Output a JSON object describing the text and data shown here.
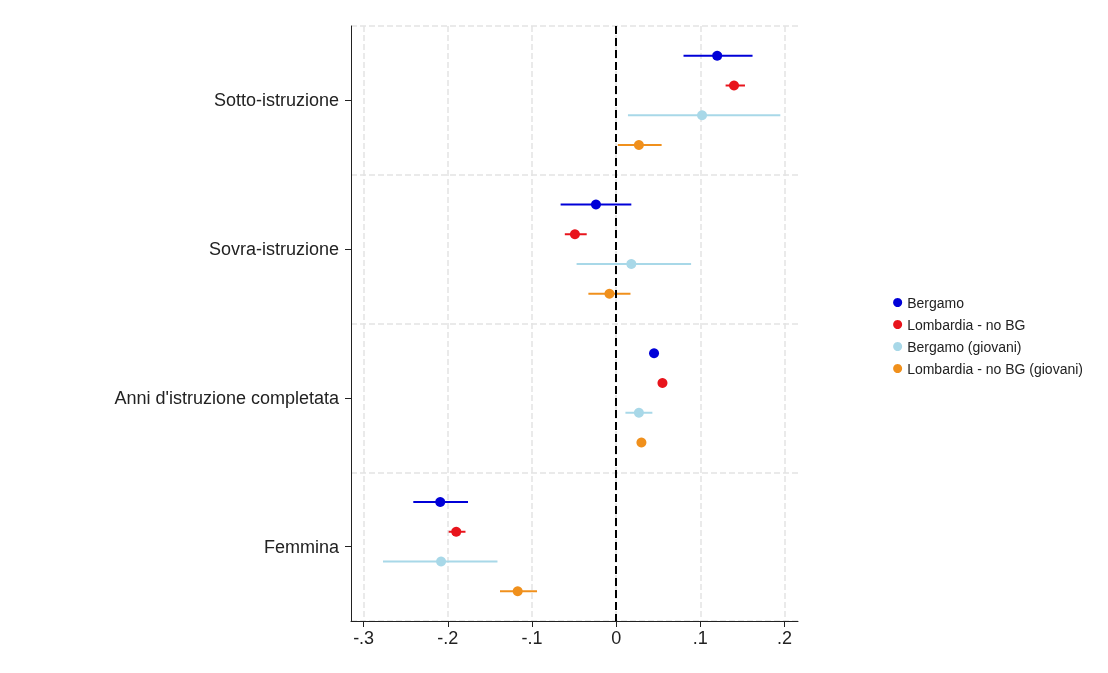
{
  "chart_data": {
    "type": "scatter",
    "orientation": "horizontal",
    "categories": [
      "Sotto-istruzione",
      "Sovra-istruzione",
      "Anni d'istruzione completata",
      "Femmina"
    ],
    "series": [
      {
        "name": "Bergamo",
        "color": "#0000d8",
        "values": [
          0.12,
          -0.024,
          0.045,
          -0.209
        ],
        "errors": [
          [
            0.08,
            0.162
          ],
          [
            -0.066,
            0.018
          ],
          null,
          [
            -0.241,
            -0.176
          ]
        ]
      },
      {
        "name": "Lombardia - no BG",
        "color": "#e8141c",
        "values": [
          0.14,
          -0.049,
          0.055,
          -0.19
        ],
        "errors": [
          [
            0.13,
            0.153
          ],
          [
            -0.061,
            -0.035
          ],
          null,
          [
            -0.199,
            -0.179
          ]
        ]
      },
      {
        "name": "Bergamo (giovani)",
        "color": "#a8d8e8",
        "values": [
          0.102,
          0.018,
          0.027,
          -0.208
        ],
        "errors": [
          [
            0.014,
            0.195
          ],
          [
            -0.047,
            0.089
          ],
          [
            0.011,
            0.043
          ],
          [
            -0.277,
            -0.141
          ]
        ]
      },
      {
        "name": "Lombardia - no BG (giovani)",
        "color": "#f0901c",
        "values": [
          0.027,
          -0.008,
          0.03,
          -0.117
        ],
        "errors": [
          [
            0.002,
            0.054
          ],
          [
            -0.033,
            0.017
          ],
          null,
          [
            -0.138,
            -0.094
          ]
        ]
      }
    ],
    "xlim": [
      -0.315,
      0.216
    ],
    "xticks": [
      {
        "value": -0.3,
        "label": "-.3"
      },
      {
        "value": -0.2,
        "label": "-.2"
      },
      {
        "value": -0.1,
        "label": "-.1"
      },
      {
        "value": 0,
        "label": "0"
      },
      {
        "value": 0.1,
        "label": ".1"
      },
      {
        "value": 0.2,
        "label": ".2"
      }
    ],
    "ref_lines": [
      {
        "axis": "x",
        "value": 0,
        "color": "#000000",
        "line_style": "dashed"
      }
    ],
    "grid": true,
    "legend": "right",
    "marker": "circle"
  }
}
